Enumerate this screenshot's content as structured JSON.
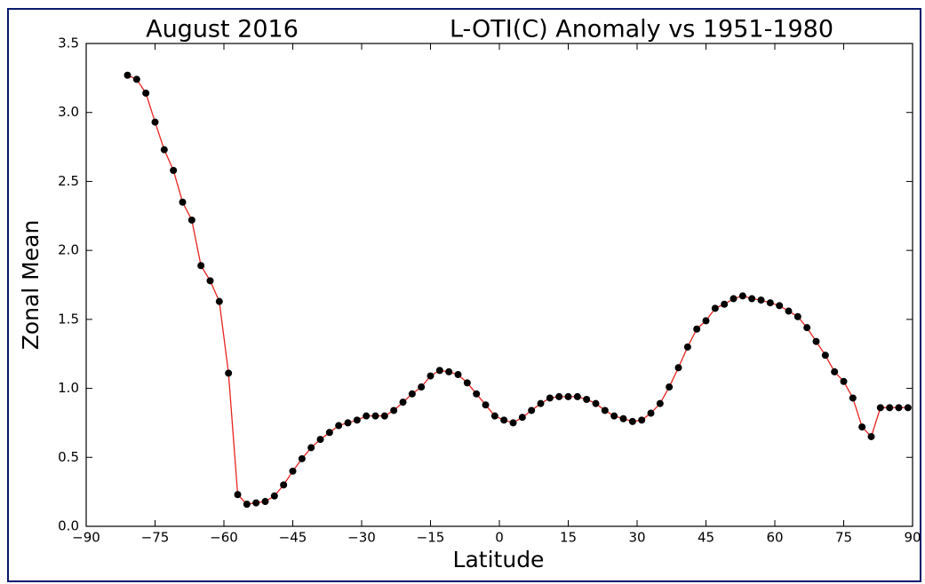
{
  "chart_data": {
    "type": "line",
    "title_left": "August 2016",
    "title_right": "L-OTI(C) Anomaly vs 1951-1980",
    "xlabel": "Latitude",
    "ylabel": "Zonal Mean",
    "x": [
      -81,
      -79,
      -77,
      -75,
      -73,
      -71,
      -69,
      -67,
      -65,
      -63,
      -61,
      -59,
      -57,
      -55,
      -53,
      -51,
      -49,
      -47,
      -45,
      -43,
      -41,
      -39,
      -37,
      -35,
      -33,
      -31,
      -29,
      -27,
      -25,
      -23,
      -21,
      -19,
      -17,
      -15,
      -13,
      -11,
      -9,
      -7,
      -5,
      -3,
      -1,
      1,
      3,
      5,
      7,
      9,
      11,
      13,
      15,
      17,
      19,
      21,
      23,
      25,
      27,
      29,
      31,
      33,
      35,
      37,
      39,
      41,
      43,
      45,
      47,
      49,
      51,
      53,
      55,
      57,
      59,
      61,
      63,
      65,
      67,
      69,
      71,
      73,
      75,
      77,
      79,
      81,
      83,
      85,
      87,
      89
    ],
    "values": [
      3.27,
      3.24,
      3.14,
      2.93,
      2.73,
      2.58,
      2.35,
      2.22,
      1.89,
      1.78,
      1.63,
      1.11,
      0.23,
      0.16,
      0.17,
      0.18,
      0.22,
      0.3,
      0.4,
      0.49,
      0.57,
      0.63,
      0.68,
      0.73,
      0.75,
      0.77,
      0.8,
      0.8,
      0.8,
      0.84,
      0.9,
      0.96,
      1.01,
      1.09,
      1.13,
      1.12,
      1.1,
      1.04,
      0.96,
      0.88,
      0.8,
      0.77,
      0.75,
      0.79,
      0.84,
      0.89,
      0.93,
      0.94,
      0.94,
      0.94,
      0.92,
      0.89,
      0.84,
      0.8,
      0.78,
      0.76,
      0.77,
      0.82,
      0.89,
      1.01,
      1.15,
      1.3,
      1.43,
      1.49,
      1.58,
      1.61,
      1.65,
      1.67,
      1.65,
      1.64,
      1.62,
      1.6,
      1.56,
      1.52,
      1.44,
      1.34,
      1.24,
      1.12,
      1.05,
      0.93,
      0.72,
      0.65,
      0.86,
      0.86,
      0.86,
      0.86
    ],
    "color": "#e8231e",
    "marker_color": "#000000",
    "xlim": [
      -90,
      90
    ],
    "xticks": [
      {
        "value": -90,
        "label": "−90"
      },
      {
        "value": -75,
        "label": "−75"
      },
      {
        "value": -60,
        "label": "−60"
      },
      {
        "value": -45,
        "label": "−45"
      },
      {
        "value": -30,
        "label": "−30"
      },
      {
        "value": -15,
        "label": "−15"
      },
      0,
      15,
      30,
      45,
      60,
      75,
      90
    ],
    "ylim": [
      0,
      3.5
    ],
    "yticks": [
      {
        "value": 0,
        "label": "0.0"
      },
      0.5,
      {
        "value": 1,
        "label": "1.0"
      },
      1.5,
      {
        "value": 2,
        "label": "2.0"
      },
      2.5,
      {
        "value": 3,
        "label": "3.0"
      },
      3.5
    ]
  }
}
